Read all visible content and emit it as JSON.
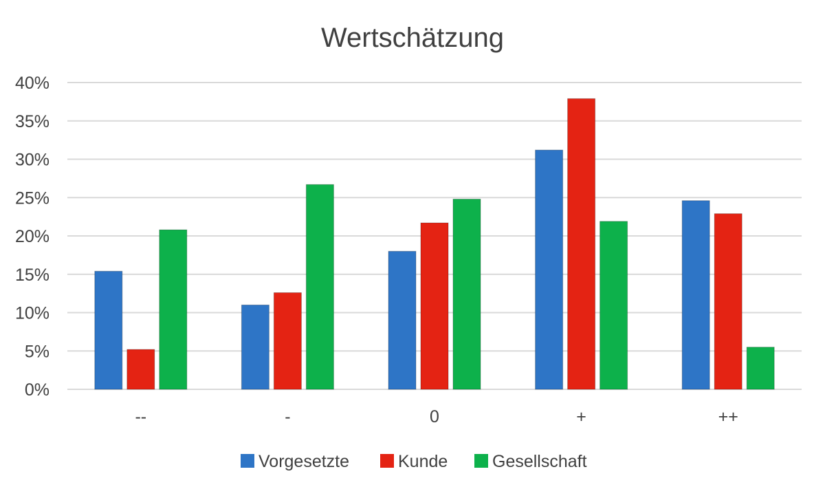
{
  "chart_data": {
    "type": "bar",
    "title": "Wertschätzung",
    "xlabel": "",
    "ylabel": "",
    "categories": [
      "--",
      "-",
      "0",
      "+",
      "++"
    ],
    "ylim": [
      0,
      40
    ],
    "yticks": [
      "0%",
      "5%",
      "10%",
      "15%",
      "20%",
      "25%",
      "30%",
      "35%",
      "40%"
    ],
    "ytick_values": [
      0,
      5,
      10,
      15,
      20,
      25,
      30,
      35,
      40
    ],
    "grid": true,
    "legend_position": "bottom",
    "series": [
      {
        "name": "Vorgesetzte",
        "color": "#2e75c6",
        "values": [
          15.4,
          11.0,
          18.0,
          31.2,
          24.6
        ]
      },
      {
        "name": "Kunde",
        "color": "#e42313",
        "values": [
          5.2,
          12.6,
          21.7,
          37.9,
          22.9
        ]
      },
      {
        "name": "Gesellschaft",
        "color": "#0db14b",
        "values": [
          20.8,
          26.7,
          24.8,
          21.9,
          5.5
        ]
      }
    ]
  }
}
